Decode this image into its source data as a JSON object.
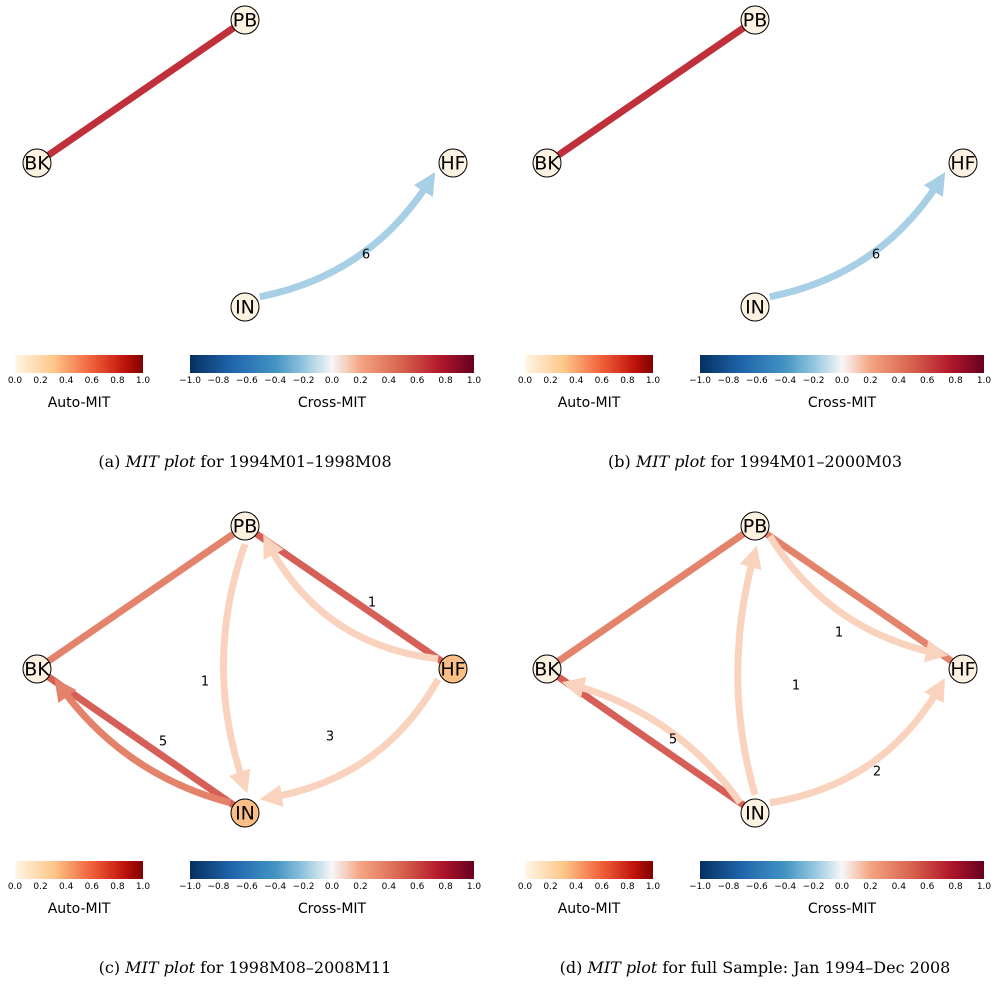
{
  "colors": {
    "red_link": "#c0303b",
    "red_med": "#d65f57",
    "red_light": "#e4836b",
    "light_blue": "#a7cfe5",
    "pale_peach": "#fad3be",
    "node_cream": "#fdf1e1",
    "node_orange": "#fbbe86"
  },
  "colorbars": {
    "auto_title": "Auto-MIT",
    "cross_title": "Cross-MIT",
    "auto_ticks": [
      "0.0",
      "0.2",
      "0.4",
      "0.6",
      "0.8",
      "1.0"
    ],
    "cross_ticks": [
      "−1.0",
      "−0.8",
      "−0.6",
      "−0.4",
      "−0.2",
      "0.0",
      "0.2",
      "0.4",
      "0.6",
      "0.8",
      "1.0"
    ]
  },
  "panels": [
    {
      "caption": {
        "prefix": "(a) ",
        "italic": "MIT plot",
        "suffix": " for 1994M01–1998M08"
      },
      "nodes": [
        {
          "id": "PB",
          "label": "PB",
          "fill": "#fdf1e1"
        },
        {
          "id": "BK",
          "label": "BK",
          "fill": "#fdf1e1"
        },
        {
          "id": "HF",
          "label": "HF",
          "fill": "#fdf1e1"
        },
        {
          "id": "IN",
          "label": "IN",
          "fill": "#fdf1e1"
        }
      ],
      "edges": [
        {
          "from": "BK",
          "to": "PB",
          "directed": false,
          "color": "#c0303b",
          "label": ""
        },
        {
          "from": "IN",
          "to": "HF",
          "directed": true,
          "color": "#a7cfe5",
          "label": "6"
        }
      ]
    },
    {
      "caption": {
        "prefix": "(b) ",
        "italic": "MIT plot",
        "suffix": " for 1994M01–2000M03"
      },
      "nodes": [
        {
          "id": "PB",
          "label": "PB",
          "fill": "#fdf1e1"
        },
        {
          "id": "BK",
          "label": "BK",
          "fill": "#fdf1e1"
        },
        {
          "id": "HF",
          "label": "HF",
          "fill": "#fdf1e1"
        },
        {
          "id": "IN",
          "label": "IN",
          "fill": "#fdf1e1"
        }
      ],
      "edges": [
        {
          "from": "BK",
          "to": "PB",
          "directed": false,
          "color": "#c0303b",
          "label": ""
        },
        {
          "from": "IN",
          "to": "HF",
          "directed": true,
          "color": "#a7cfe5",
          "label": "6"
        }
      ]
    },
    {
      "caption": {
        "prefix": "(c) ",
        "italic": "MIT plot",
        "suffix": " for 1998M08–2008M11"
      },
      "nodes": [
        {
          "id": "PB",
          "label": "PB",
          "fill": "#fdf1e1"
        },
        {
          "id": "BK",
          "label": "BK",
          "fill": "#fdf1e1"
        },
        {
          "id": "HF",
          "label": "HF",
          "fill": "#fbbe86"
        },
        {
          "id": "IN",
          "label": "IN",
          "fill": "#fbbe86"
        }
      ],
      "edges": [
        {
          "from": "BK",
          "to": "PB",
          "directed": false,
          "color": "#e4836b",
          "label": ""
        },
        {
          "from": "PB",
          "to": "HF",
          "directed": false,
          "color": "#d65f57",
          "label": ""
        },
        {
          "from": "BK",
          "to": "IN",
          "directed": false,
          "color": "#d65f57",
          "label": ""
        },
        {
          "from": "HF",
          "to": "PB",
          "directed": true,
          "color": "#fad3be",
          "label": "1"
        },
        {
          "from": "PB",
          "to": "IN",
          "directed": true,
          "color": "#fad3be",
          "label": "1"
        },
        {
          "from": "IN",
          "to": "BK",
          "directed": true,
          "color": "#e4836b",
          "label": "5"
        },
        {
          "from": "HF",
          "to": "IN",
          "directed": true,
          "color": "#fad3be",
          "label": "3"
        }
      ]
    },
    {
      "caption": {
        "prefix": "(d) ",
        "italic": "MIT plot",
        "suffix": " for full Sample: Jan 1994–Dec 2008"
      },
      "nodes": [
        {
          "id": "PB",
          "label": "PB",
          "fill": "#fdf1e1"
        },
        {
          "id": "BK",
          "label": "BK",
          "fill": "#fdf1e1"
        },
        {
          "id": "HF",
          "label": "HF",
          "fill": "#fdf1e1"
        },
        {
          "id": "IN",
          "label": "IN",
          "fill": "#fdf1e1"
        }
      ],
      "edges": [
        {
          "from": "BK",
          "to": "PB",
          "directed": false,
          "color": "#e4836b",
          "label": ""
        },
        {
          "from": "PB",
          "to": "HF",
          "directed": false,
          "color": "#e4836b",
          "label": ""
        },
        {
          "from": "BK",
          "to": "IN",
          "directed": false,
          "color": "#d65f57",
          "label": ""
        },
        {
          "from": "PB",
          "to": "HF",
          "directed": true,
          "color": "#fad3be",
          "label": "1"
        },
        {
          "from": "IN",
          "to": "PB",
          "directed": true,
          "color": "#fad3be",
          "label": "1"
        },
        {
          "from": "IN",
          "to": "BK",
          "directed": true,
          "color": "#fad3be",
          "label": "5"
        },
        {
          "from": "IN",
          "to": "HF",
          "directed": true,
          "color": "#fad3be",
          "label": "2"
        }
      ]
    }
  ]
}
